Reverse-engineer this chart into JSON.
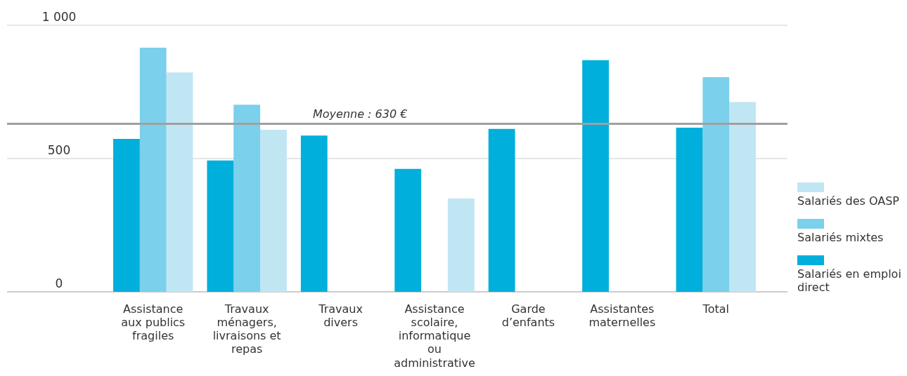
{
  "chart_data": {
    "type": "bar",
    "categories": [
      "Assistance aux publics fragiles",
      "Travaux ménagers, livraisons et repas",
      "Travaux divers",
      "Assistance scolaire, informatique ou administrative",
      "Garde d’enfants",
      "Assistantes maternelles",
      "Total"
    ],
    "series": [
      {
        "name": "Salariés en emploi direct",
        "color": "#00afdb",
        "values": [
          574,
          493,
          586,
          461,
          611,
          869,
          616
        ]
      },
      {
        "name": "Salariés mixtes",
        "color": "#7bd0ec",
        "values": [
          916,
          702,
          null,
          null,
          null,
          null,
          805
        ]
      },
      {
        "name": "Salariés des OASP",
        "color": "#c0e6f4",
        "values": [
          823,
          608,
          null,
          350,
          null,
          null,
          712
        ]
      }
    ],
    "ylim": [
      0,
      1000
    ],
    "yticks": [
      0,
      500,
      {
        "value": 1000,
        "label": "1 000"
      }
    ],
    "grid": "y",
    "legend": "right",
    "ref_lines": [
      {
        "axis": "y",
        "value": 630,
        "label": "Moyenne : 630 €",
        "color": "#a0a0a0"
      }
    ]
  }
}
